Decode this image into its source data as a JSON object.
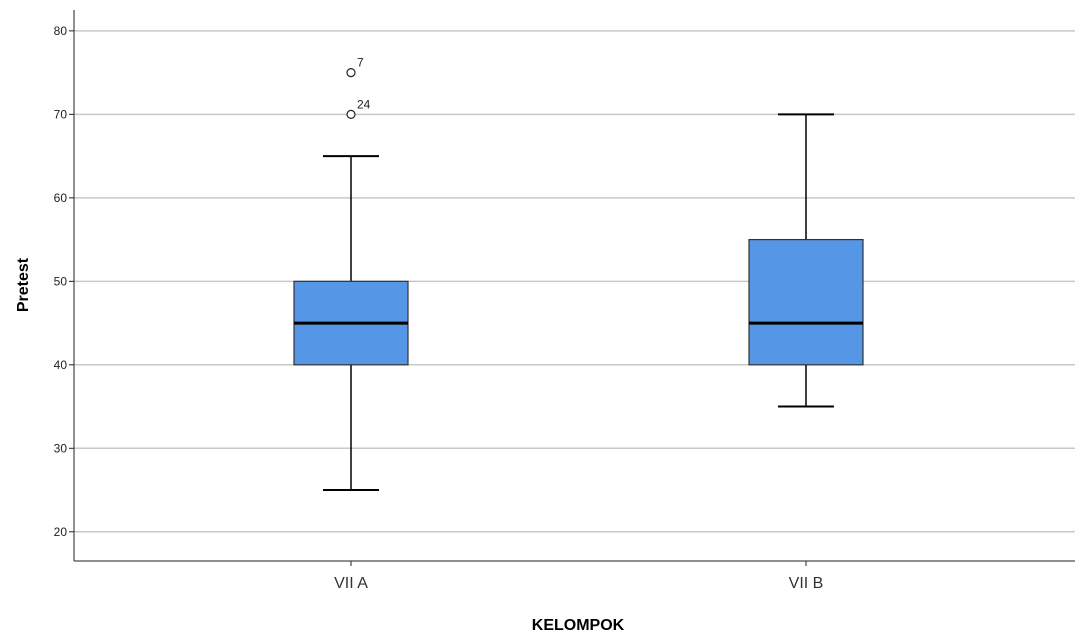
{
  "chart_data": {
    "type": "boxplot",
    "xlabel": "KELOMPOK",
    "ylabel": "Pretest",
    "ylim": [
      16.5,
      82.5
    ],
    "yticks": [
      20,
      30,
      40,
      50,
      60,
      70,
      80
    ],
    "grid": true,
    "categories": [
      "VII A",
      "VII B"
    ],
    "boxes": [
      {
        "category": "VII A",
        "whisker_low": 25,
        "q1": 40,
        "median": 45,
        "q3": 50,
        "whisker_high": 65,
        "outliers": [
          {
            "value": 75,
            "label": "7"
          },
          {
            "value": 70,
            "label": "24"
          }
        ]
      },
      {
        "category": "VII B",
        "whisker_low": 35,
        "q1": 40,
        "median": 45,
        "q3": 55,
        "whisker_high": 70,
        "outliers": []
      }
    ],
    "colors": {
      "box_fill": "#5596e6",
      "stroke": "#000000",
      "grid": "#c8c8c8",
      "axis": "#222222"
    }
  }
}
